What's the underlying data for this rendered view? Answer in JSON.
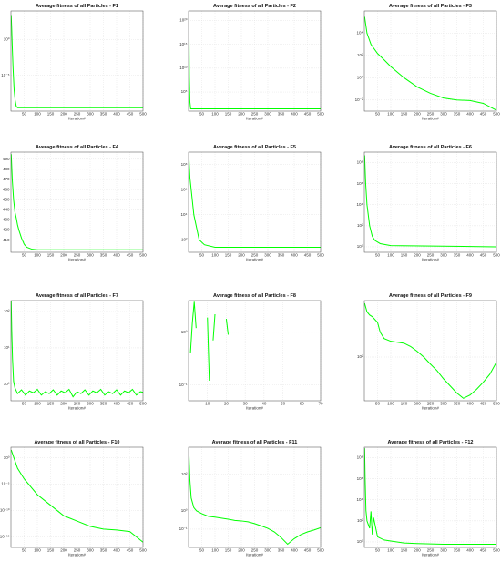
{
  "chart_data": [
    {
      "type": "line",
      "title": "Average fitness of all Particles - F1",
      "xlabel": "Iteration#",
      "log": true,
      "grid": true,
      "color": "#00ff00",
      "xlim": [
        0,
        500
      ],
      "xticks": [
        50,
        100,
        150,
        200,
        250,
        300,
        350,
        400,
        450,
        500
      ],
      "ylim": [
        1e-10,
        10000
      ],
      "yticks": [
        {
          "value": 1,
          "label": "10⁰"
        },
        {
          "value": 1e-05,
          "label": "10⁻⁵"
        }
      ],
      "x": [
        1,
        3,
        5,
        8,
        12,
        16,
        20,
        25,
        500
      ],
      "values": [
        2000,
        20,
        0.1,
        0.0001,
        1e-07,
        3e-09,
        5e-10,
        3e-10,
        3e-10
      ]
    },
    {
      "type": "line",
      "title": "Average fitness of all Particles - F2",
      "xlabel": "Iteration#",
      "log": true,
      "grid": true,
      "color": "#00ff00",
      "xlim": [
        0,
        500
      ],
      "xticks": [
        50,
        100,
        150,
        200,
        250,
        300,
        350,
        400,
        450,
        500
      ],
      "ylim": [
        10,
        1e+22
      ],
      "yticks": [
        {
          "value": 1e+20,
          "label": "10²⁰"
        },
        {
          "value": 1000000000000000.0,
          "label": "10¹⁵"
        },
        {
          "value": 10000000000.0,
          "label": "10¹⁰"
        },
        {
          "value": 100000,
          "label": "10⁵"
        }
      ],
      "x": [
        1,
        3,
        5,
        8,
        500
      ],
      "values": [
        1e+21,
        100000000.0,
        1000,
        30,
        30
      ]
    },
    {
      "type": "line",
      "title": "Average fitness of all Particles - F3",
      "xlabel": "Iteration#",
      "log": true,
      "grid": true,
      "color": "#00ff00",
      "xlim": [
        0,
        500
      ],
      "xticks": [
        50,
        100,
        150,
        200,
        250,
        300,
        350,
        400,
        450,
        500
      ],
      "ylim": [
        0.001,
        1000000
      ],
      "yticks": [
        {
          "value": 10000,
          "label": "10⁴"
        },
        {
          "value": 100,
          "label": "10²"
        },
        {
          "value": 1,
          "label": "10⁰"
        },
        {
          "value": 0.01,
          "label": "10⁻²"
        }
      ],
      "x": [
        1,
        10,
        25,
        50,
        75,
        100,
        150,
        200,
        250,
        300,
        350,
        400,
        450,
        500
      ],
      "values": [
        300000,
        10000,
        1000,
        150,
        40,
        10,
        1,
        0.15,
        0.04,
        0.015,
        0.01,
        0.009,
        0.005,
        0.0012
      ]
    },
    {
      "type": "line",
      "title": "Average fitness of all Particles - F4",
      "xlabel": "Iteration#",
      "log": false,
      "grid": true,
      "color": "#00ff00",
      "xlim": [
        0,
        500
      ],
      "xticks": [
        50,
        100,
        150,
        200,
        250,
        300,
        350,
        400,
        450,
        500
      ],
      "ylim": [
        398,
        497
      ],
      "yticks": [
        410,
        420,
        430,
        440,
        450,
        460,
        470,
        480,
        490
      ],
      "x": [
        1,
        5,
        10,
        15,
        20,
        25,
        30,
        40,
        50,
        60,
        80,
        100,
        500
      ],
      "values": [
        495,
        470,
        450,
        438,
        432,
        425,
        420,
        412,
        406,
        403,
        401,
        400.5,
        400.5
      ]
    },
    {
      "type": "line",
      "title": "Average fitness of all Particles - F5",
      "xlabel": "Iteration#",
      "log": true,
      "grid": true,
      "color": "#00ff00",
      "xlim": [
        0,
        500
      ],
      "xticks": [
        50,
        100,
        150,
        200,
        250,
        300,
        350,
        400,
        450,
        500
      ],
      "ylim": [
        10,
        1000000000
      ],
      "yticks": [
        {
          "value": 100000000,
          "label": "10⁸"
        },
        {
          "value": 1000000,
          "label": "10⁶"
        },
        {
          "value": 10000,
          "label": "10⁴"
        },
        {
          "value": 100,
          "label": "10²"
        }
      ],
      "x": [
        1,
        5,
        10,
        20,
        30,
        40,
        60,
        100,
        500
      ],
      "values": [
        500000000,
        10000000,
        1000000,
        10000,
        1000,
        100,
        40,
        25,
        25
      ]
    },
    {
      "type": "line",
      "title": "Average fitness of all Particles - F6",
      "xlabel": "Iteration#",
      "log": true,
      "grid": true,
      "color": "#00ff00",
      "xlim": [
        0,
        500
      ],
      "xticks": [
        50,
        100,
        150,
        200,
        250,
        300,
        350,
        400,
        450,
        500
      ],
      "ylim": [
        0.3,
        1000000000
      ],
      "yticks": [
        {
          "value": 100000000,
          "label": "10⁸"
        },
        {
          "value": 1000000,
          "label": "10⁶"
        },
        {
          "value": 10000,
          "label": "10⁴"
        },
        {
          "value": 100,
          "label": "10²"
        },
        {
          "value": 1,
          "label": "10⁰"
        }
      ],
      "x": [
        1,
        5,
        10,
        20,
        30,
        40,
        60,
        100,
        500
      ],
      "values": [
        500000000,
        1000000,
        10000,
        100,
        10,
        4,
        2,
        1.3,
        1
      ]
    },
    {
      "type": "line",
      "title": "Average fitness of all Particles - F7",
      "xlabel": "Iteration#",
      "log": true,
      "grid": true,
      "color": "#00ff00",
      "xlim": [
        0,
        500
      ],
      "xticks": [
        50,
        100,
        150,
        200,
        250,
        300,
        350,
        400,
        450,
        500
      ],
      "ylim": [
        0.35,
        200
      ],
      "yticks": [
        {
          "value": 100,
          "label": "10²"
        },
        {
          "value": 10,
          "label": "10¹"
        },
        {
          "value": 1,
          "label": "10⁰"
        }
      ],
      "x": [
        1,
        3,
        6,
        10,
        15,
        25,
        40,
        55,
        70,
        85,
        100,
        115,
        130,
        145,
        160,
        175,
        190,
        205,
        220,
        235,
        250,
        265,
        280,
        295,
        310,
        325,
        340,
        355,
        370,
        385,
        400,
        415,
        430,
        445,
        460,
        475,
        490,
        500
      ],
      "values": [
        190,
        30,
        5,
        1.2,
        0.8,
        0.55,
        0.7,
        0.5,
        0.65,
        0.58,
        0.72,
        0.5,
        0.62,
        0.55,
        0.7,
        0.5,
        0.65,
        0.58,
        0.72,
        0.45,
        0.62,
        0.55,
        0.7,
        0.5,
        0.65,
        0.58,
        0.72,
        0.5,
        0.62,
        0.55,
        0.7,
        0.5,
        0.65,
        0.58,
        0.72,
        0.5,
        0.62,
        0.6
      ]
    },
    {
      "type": "line",
      "title": "Average fitness of all Particles - F8",
      "xlabel": "Iteration#",
      "log": true,
      "grid": true,
      "color": "#00ff00",
      "xlim": [
        0,
        70
      ],
      "xticks": [
        10,
        20,
        30,
        40,
        50,
        60,
        70
      ],
      "ylim": [
        0.05,
        4
      ],
      "yticks": [
        {
          "value": 1,
          "label": "10⁰"
        },
        {
          "value": 0.1,
          "label": "10⁻¹"
        }
      ],
      "x": [
        1,
        2,
        3,
        4,
        5,
        10,
        11,
        12,
        13,
        14,
        15,
        20,
        21
      ],
      "values": [
        0.4,
        1.5,
        3.8,
        1.2,
        null,
        1.9,
        0.12,
        null,
        0.7,
        2.2,
        null,
        1.8,
        0.9
      ]
    },
    {
      "type": "line",
      "title": "Average fitness of all Particles - F9",
      "xlabel": "Iteration#",
      "log": true,
      "grid": true,
      "color": "#00ff00",
      "xlim": [
        0,
        500
      ],
      "xticks": [
        50,
        100,
        150,
        200,
        250,
        300,
        350,
        400,
        450,
        500
      ],
      "ylim": [
        25,
        600
      ],
      "yticks": [
        {
          "value": 100,
          "label": "10²"
        }
      ],
      "x": [
        1,
        10,
        20,
        30,
        50,
        60,
        75,
        100,
        125,
        150,
        175,
        200,
        225,
        250,
        275,
        300,
        325,
        350,
        375,
        400,
        425,
        450,
        475,
        500
      ],
      "values": [
        550,
        420,
        380,
        360,
        300,
        220,
        180,
        165,
        160,
        155,
        140,
        120,
        100,
        80,
        65,
        50,
        40,
        32,
        27,
        30,
        36,
        45,
        58,
        85
      ]
    },
    {
      "type": "line",
      "title": "Average fitness of all Particles - F10",
      "xlabel": "Iteration#",
      "log": true,
      "grid": true,
      "color": "#00ff00",
      "xlim": [
        0,
        500
      ],
      "xticks": [
        50,
        100,
        150,
        200,
        250,
        300,
        350,
        400,
        450,
        500
      ],
      "ylim": [
        1e-17,
        100
      ],
      "yticks": [
        {
          "value": 1,
          "label": "10⁰"
        },
        {
          "value": 1e-05,
          "label": "10⁻⁵"
        },
        {
          "value": 1e-10,
          "label": "10⁻¹⁰"
        },
        {
          "value": 1e-15,
          "label": "10⁻¹⁵"
        }
      ],
      "x": [
        1,
        25,
        50,
        100,
        150,
        200,
        250,
        300,
        350,
        400,
        450,
        500
      ],
      "values": [
        30,
        0.01,
        0.0001,
        1e-07,
        1e-09,
        1e-11,
        1e-12,
        1e-13,
        3e-14,
        2e-14,
        1e-14,
        1e-16
      ]
    },
    {
      "type": "line",
      "title": "Average fitness of all Particles - F11",
      "xlabel": "Iteration#",
      "log": true,
      "grid": true,
      "color": "#00ff00",
      "xlim": [
        0,
        500
      ],
      "xticks": [
        50,
        100,
        150,
        200,
        250,
        300,
        350,
        400,
        450,
        500
      ],
      "ylim": [
        0.01,
        3000
      ],
      "yticks": [
        {
          "value": 100,
          "label": "10²"
        },
        {
          "value": 1,
          "label": "10⁰"
        },
        {
          "value": 0.1,
          "label": "10⁻¹"
        }
      ],
      "x": [
        1,
        5,
        10,
        20,
        30,
        50,
        75,
        100,
        125,
        150,
        175,
        200,
        225,
        250,
        275,
        300,
        325,
        350,
        375,
        400,
        425,
        450,
        475,
        500
      ],
      "values": [
        2000,
        50,
        5,
        1.5,
        1,
        0.7,
        0.5,
        0.45,
        0.4,
        0.35,
        0.3,
        0.28,
        0.25,
        0.2,
        0.15,
        0.11,
        0.07,
        0.035,
        0.015,
        0.03,
        0.05,
        0.07,
        0.09,
        0.12
      ]
    },
    {
      "type": "line",
      "title": "Average fitness of all Particles - F12",
      "xlabel": "Iteration#",
      "log": true,
      "grid": true,
      "color": "#00ff00",
      "xlim": [
        0,
        500
      ],
      "xticks": [
        50,
        100,
        150,
        200,
        250,
        300,
        350,
        400,
        450,
        500
      ],
      "ylim": [
        0.3,
        1000000000
      ],
      "yticks": [
        {
          "value": 100000000,
          "label": "10⁸"
        },
        {
          "value": 1000000,
          "label": "10⁶"
        },
        {
          "value": 10000,
          "label": "10⁴"
        },
        {
          "value": 100,
          "label": "10²"
        },
        {
          "value": 1,
          "label": "10⁰"
        }
      ],
      "x": [
        1,
        3,
        6,
        10,
        20,
        25,
        30,
        35,
        50,
        75,
        100,
        150,
        200,
        300,
        500
      ],
      "values": [
        800000000,
        1000000,
        1000,
        100,
        20,
        800,
        5,
        200,
        3,
        1.5,
        1.2,
        0.8,
        0.7,
        0.6,
        0.6
      ]
    }
  ]
}
